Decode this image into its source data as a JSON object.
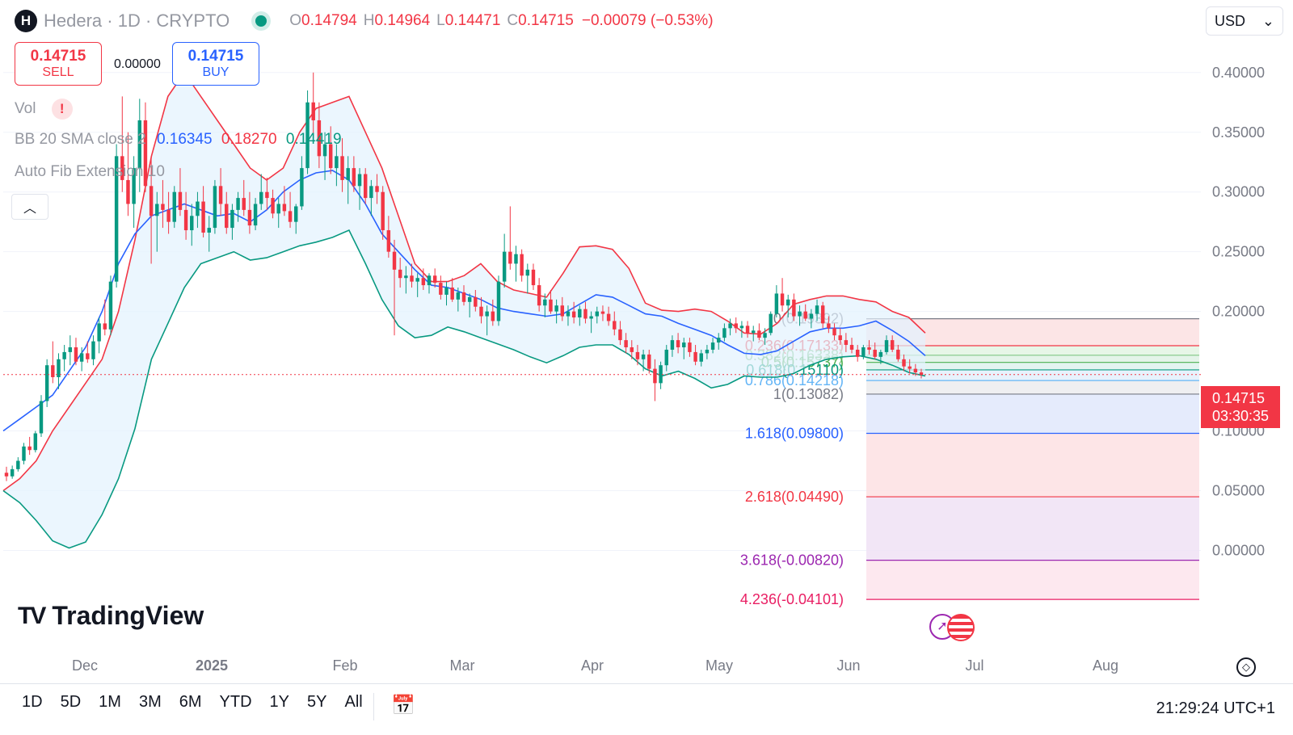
{
  "header": {
    "symbol": "Hedera · 1D · CRYPTO",
    "logo_letter": "H",
    "ohlc": {
      "o_label": "O",
      "o": "0.14794",
      "h_label": "H",
      "h": "0.14964",
      "l_label": "L",
      "l": "0.14471",
      "c_label": "C",
      "c": "0.14715",
      "change": "−0.00079 (−0.53%)"
    },
    "currency": "USD"
  },
  "trade": {
    "sell_price": "0.14715",
    "sell_label": "SELL",
    "buy_price": "0.14715",
    "buy_label": "BUY",
    "spread": "0.00000"
  },
  "indicators": {
    "vol_label": "Vol",
    "vol_warning": "!",
    "bb_label": "BB 20 SMA close 2",
    "bb_basis": "0.16345",
    "bb_upper": "0.18270",
    "bb_lower": "0.14419",
    "fib_label": "Auto Fib Extension 10"
  },
  "colors": {
    "up": "#089981",
    "down": "#f23645",
    "basis": "#2962ff",
    "upper": "#f23645",
    "lower": "#089981",
    "band_fill": "#e3f2fd"
  },
  "chart_data": {
    "type": "candlestick",
    "price_axis": {
      "min": -0.07,
      "max": 0.41,
      "ticks": [
        "0.40000",
        "0.35000",
        "0.30000",
        "0.25000",
        "0.20000",
        "0.10000",
        "0.05000",
        "0.00000"
      ]
    },
    "time_axis": [
      "Dec",
      "2025",
      "Feb",
      "Mar",
      "Apr",
      "May",
      "Jun",
      "Jul",
      "Aug"
    ],
    "last_price": "0.14715",
    "countdown": "03:30:35",
    "candles": [
      [
        0.065,
        0.07,
        0.058,
        0.062
      ],
      [
        0.062,
        0.071,
        0.06,
        0.068
      ],
      [
        0.068,
        0.078,
        0.066,
        0.075
      ],
      [
        0.075,
        0.09,
        0.072,
        0.087
      ],
      [
        0.087,
        0.095,
        0.08,
        0.084
      ],
      [
        0.084,
        0.1,
        0.082,
        0.098
      ],
      [
        0.098,
        0.13,
        0.095,
        0.125
      ],
      [
        0.125,
        0.16,
        0.12,
        0.155
      ],
      [
        0.155,
        0.175,
        0.14,
        0.145
      ],
      [
        0.145,
        0.165,
        0.135,
        0.16
      ],
      [
        0.16,
        0.172,
        0.15,
        0.166
      ],
      [
        0.166,
        0.18,
        0.155,
        0.17
      ],
      [
        0.17,
        0.178,
        0.155,
        0.158
      ],
      [
        0.158,
        0.17,
        0.15,
        0.165
      ],
      [
        0.165,
        0.175,
        0.157,
        0.16
      ],
      [
        0.16,
        0.18,
        0.155,
        0.175
      ],
      [
        0.175,
        0.195,
        0.165,
        0.19
      ],
      [
        0.19,
        0.21,
        0.18,
        0.185
      ],
      [
        0.185,
        0.23,
        0.18,
        0.225
      ],
      [
        0.225,
        0.34,
        0.22,
        0.33
      ],
      [
        0.33,
        0.38,
        0.3,
        0.31
      ],
      [
        0.31,
        0.35,
        0.28,
        0.29
      ],
      [
        0.29,
        0.33,
        0.27,
        0.32
      ],
      [
        0.32,
        0.378,
        0.3,
        0.36
      ],
      [
        0.36,
        0.375,
        0.3,
        0.305
      ],
      [
        0.305,
        0.33,
        0.24,
        0.28
      ],
      [
        0.28,
        0.3,
        0.25,
        0.29
      ],
      [
        0.29,
        0.31,
        0.27,
        0.285
      ],
      [
        0.285,
        0.3,
        0.265,
        0.275
      ],
      [
        0.275,
        0.305,
        0.27,
        0.3
      ],
      [
        0.3,
        0.32,
        0.28,
        0.285
      ],
      [
        0.285,
        0.3,
        0.26,
        0.268
      ],
      [
        0.268,
        0.29,
        0.255,
        0.28
      ],
      [
        0.28,
        0.3,
        0.27,
        0.292
      ],
      [
        0.292,
        0.305,
        0.262,
        0.266
      ],
      [
        0.266,
        0.28,
        0.25,
        0.27
      ],
      [
        0.27,
        0.31,
        0.265,
        0.305
      ],
      [
        0.305,
        0.32,
        0.28,
        0.29
      ],
      [
        0.29,
        0.3,
        0.265,
        0.27
      ],
      [
        0.27,
        0.29,
        0.26,
        0.285
      ],
      [
        0.285,
        0.3,
        0.275,
        0.295
      ],
      [
        0.295,
        0.31,
        0.28,
        0.285
      ],
      [
        0.285,
        0.3,
        0.265,
        0.272
      ],
      [
        0.272,
        0.295,
        0.268,
        0.29
      ],
      [
        0.29,
        0.315,
        0.285,
        0.3
      ],
      [
        0.3,
        0.312,
        0.285,
        0.295
      ],
      [
        0.295,
        0.302,
        0.278,
        0.282
      ],
      [
        0.282,
        0.295,
        0.27,
        0.29
      ],
      [
        0.29,
        0.305,
        0.28,
        0.284
      ],
      [
        0.284,
        0.3,
        0.27,
        0.275
      ],
      [
        0.275,
        0.29,
        0.265,
        0.288
      ],
      [
        0.288,
        0.33,
        0.285,
        0.32
      ],
      [
        0.32,
        0.385,
        0.315,
        0.375
      ],
      [
        0.375,
        0.4,
        0.345,
        0.36
      ],
      [
        0.36,
        0.375,
        0.32,
        0.33
      ],
      [
        0.33,
        0.35,
        0.31,
        0.34
      ],
      [
        0.34,
        0.355,
        0.315,
        0.32
      ],
      [
        0.32,
        0.34,
        0.305,
        0.33
      ],
      [
        0.33,
        0.345,
        0.3,
        0.31
      ],
      [
        0.31,
        0.33,
        0.29,
        0.32
      ],
      [
        0.32,
        0.33,
        0.3,
        0.305
      ],
      [
        0.305,
        0.32,
        0.285,
        0.315
      ],
      [
        0.315,
        0.32,
        0.29,
        0.295
      ],
      [
        0.295,
        0.31,
        0.28,
        0.305
      ],
      [
        0.305,
        0.315,
        0.29,
        0.3
      ],
      [
        0.3,
        0.305,
        0.26,
        0.268
      ],
      [
        0.268,
        0.28,
        0.245,
        0.25
      ],
      [
        0.25,
        0.26,
        0.18,
        0.235
      ],
      [
        0.235,
        0.245,
        0.22,
        0.228
      ],
      [
        0.228,
        0.238,
        0.215,
        0.23
      ],
      [
        0.23,
        0.24,
        0.22,
        0.225
      ],
      [
        0.225,
        0.232,
        0.212,
        0.228
      ],
      [
        0.228,
        0.236,
        0.218,
        0.222
      ],
      [
        0.222,
        0.232,
        0.215,
        0.23
      ],
      [
        0.23,
        0.236,
        0.22,
        0.224
      ],
      [
        0.224,
        0.23,
        0.21,
        0.214
      ],
      [
        0.214,
        0.225,
        0.205,
        0.22
      ],
      [
        0.22,
        0.228,
        0.208,
        0.21
      ],
      [
        0.21,
        0.22,
        0.2,
        0.216
      ],
      [
        0.216,
        0.222,
        0.205,
        0.208
      ],
      [
        0.208,
        0.215,
        0.195,
        0.212
      ],
      [
        0.212,
        0.218,
        0.2,
        0.204
      ],
      [
        0.204,
        0.212,
        0.19,
        0.196
      ],
      [
        0.196,
        0.205,
        0.18,
        0.2
      ],
      [
        0.2,
        0.21,
        0.188,
        0.192
      ],
      [
        0.192,
        0.23,
        0.188,
        0.225
      ],
      [
        0.225,
        0.265,
        0.22,
        0.25
      ],
      [
        0.25,
        0.288,
        0.235,
        0.24
      ],
      [
        0.24,
        0.255,
        0.225,
        0.248
      ],
      [
        0.248,
        0.252,
        0.225,
        0.23
      ],
      [
        0.23,
        0.24,
        0.215,
        0.235
      ],
      [
        0.235,
        0.24,
        0.218,
        0.222
      ],
      [
        0.222,
        0.228,
        0.2,
        0.205
      ],
      [
        0.205,
        0.215,
        0.195,
        0.21
      ],
      [
        0.21,
        0.218,
        0.198,
        0.2
      ],
      [
        0.2,
        0.21,
        0.19,
        0.205
      ],
      [
        0.205,
        0.212,
        0.192,
        0.196
      ],
      [
        0.196,
        0.205,
        0.188,
        0.2
      ],
      [
        0.2,
        0.208,
        0.19,
        0.195
      ],
      [
        0.195,
        0.205,
        0.188,
        0.202
      ],
      [
        0.202,
        0.208,
        0.19,
        0.194
      ],
      [
        0.194,
        0.2,
        0.182,
        0.196
      ],
      [
        0.196,
        0.204,
        0.19,
        0.2
      ],
      [
        0.2,
        0.205,
        0.192,
        0.198
      ],
      [
        0.198,
        0.204,
        0.188,
        0.192
      ],
      [
        0.192,
        0.2,
        0.18,
        0.185
      ],
      [
        0.185,
        0.192,
        0.172,
        0.176
      ],
      [
        0.176,
        0.182,
        0.165,
        0.17
      ],
      [
        0.17,
        0.176,
        0.16,
        0.166
      ],
      [
        0.166,
        0.172,
        0.155,
        0.16
      ],
      [
        0.16,
        0.168,
        0.15,
        0.164
      ],
      [
        0.164,
        0.168,
        0.148,
        0.152
      ],
      [
        0.152,
        0.16,
        0.125,
        0.14
      ],
      [
        0.14,
        0.158,
        0.135,
        0.155
      ],
      [
        0.155,
        0.172,
        0.15,
        0.168
      ],
      [
        0.168,
        0.18,
        0.162,
        0.176
      ],
      [
        0.176,
        0.182,
        0.165,
        0.17
      ],
      [
        0.17,
        0.178,
        0.16,
        0.174
      ],
      [
        0.174,
        0.178,
        0.162,
        0.166
      ],
      [
        0.166,
        0.172,
        0.155,
        0.158
      ],
      [
        0.158,
        0.168,
        0.154,
        0.165
      ],
      [
        0.165,
        0.172,
        0.16,
        0.168
      ],
      [
        0.168,
        0.178,
        0.165,
        0.174
      ],
      [
        0.174,
        0.182,
        0.168,
        0.178
      ],
      [
        0.178,
        0.19,
        0.175,
        0.186
      ],
      [
        0.186,
        0.194,
        0.18,
        0.19
      ],
      [
        0.19,
        0.195,
        0.182,
        0.186
      ],
      [
        0.186,
        0.192,
        0.178,
        0.188
      ],
      [
        0.188,
        0.192,
        0.178,
        0.182
      ],
      [
        0.182,
        0.188,
        0.175,
        0.184
      ],
      [
        0.184,
        0.19,
        0.176,
        0.178
      ],
      [
        0.178,
        0.186,
        0.172,
        0.182
      ],
      [
        0.182,
        0.2,
        0.18,
        0.198
      ],
      [
        0.198,
        0.222,
        0.195,
        0.215
      ],
      [
        0.215,
        0.228,
        0.2,
        0.205
      ],
      [
        0.205,
        0.214,
        0.195,
        0.21
      ],
      [
        0.21,
        0.215,
        0.192,
        0.196
      ],
      [
        0.196,
        0.205,
        0.188,
        0.2
      ],
      [
        0.2,
        0.206,
        0.192,
        0.194
      ],
      [
        0.194,
        0.202,
        0.186,
        0.198
      ],
      [
        0.198,
        0.21,
        0.192,
        0.205
      ],
      [
        0.205,
        0.208,
        0.186,
        0.19
      ],
      [
        0.19,
        0.196,
        0.182,
        0.186
      ],
      [
        0.186,
        0.19,
        0.176,
        0.18
      ],
      [
        0.18,
        0.186,
        0.172,
        0.176
      ],
      [
        0.176,
        0.182,
        0.166,
        0.172
      ],
      [
        0.172,
        0.178,
        0.165,
        0.168
      ],
      [
        0.168,
        0.172,
        0.158,
        0.162
      ],
      [
        0.162,
        0.172,
        0.16,
        0.17
      ],
      [
        0.17,
        0.176,
        0.164,
        0.168
      ],
      [
        0.168,
        0.174,
        0.16,
        0.162
      ],
      [
        0.162,
        0.168,
        0.156,
        0.166
      ],
      [
        0.166,
        0.18,
        0.164,
        0.176
      ],
      [
        0.176,
        0.18,
        0.166,
        0.168
      ],
      [
        0.168,
        0.172,
        0.158,
        0.16
      ],
      [
        0.16,
        0.164,
        0.15,
        0.154
      ],
      [
        0.154,
        0.16,
        0.148,
        0.152
      ],
      [
        0.152,
        0.156,
        0.146,
        0.149
      ],
      [
        0.149,
        0.152,
        0.144,
        0.147
      ]
    ],
    "bollinger": {
      "upper": [
        0.05,
        0.06,
        0.075,
        0.1,
        0.12,
        0.14,
        0.16,
        0.2,
        0.26,
        0.33,
        0.38,
        0.4,
        0.38,
        0.36,
        0.34,
        0.32,
        0.31,
        0.32,
        0.35,
        0.37,
        0.375,
        0.38,
        0.35,
        0.32,
        0.28,
        0.24,
        0.225,
        0.225,
        0.23,
        0.24,
        0.225,
        0.218,
        0.215,
        0.212,
        0.232,
        0.254,
        0.255,
        0.252,
        0.236,
        0.207,
        0.201,
        0.2,
        0.202,
        0.2,
        0.192,
        0.182,
        0.181,
        0.19,
        0.206,
        0.21,
        0.213,
        0.213,
        0.21,
        0.208,
        0.2,
        0.195,
        0.182
      ],
      "basis": [
        0.1,
        0.11,
        0.12,
        0.13,
        0.15,
        0.17,
        0.2,
        0.24,
        0.265,
        0.28,
        0.285,
        0.29,
        0.285,
        0.28,
        0.282,
        0.275,
        0.285,
        0.3,
        0.31,
        0.316,
        0.318,
        0.31,
        0.29,
        0.265,
        0.25,
        0.235,
        0.222,
        0.22,
        0.215,
        0.21,
        0.203,
        0.2,
        0.198,
        0.196,
        0.198,
        0.206,
        0.214,
        0.212,
        0.205,
        0.198,
        0.196,
        0.19,
        0.185,
        0.18,
        0.172,
        0.165,
        0.164,
        0.167,
        0.175,
        0.183,
        0.186,
        0.186,
        0.188,
        0.192,
        0.184,
        0.175,
        0.163
      ],
      "lower": [
        0.05,
        0.04,
        0.025,
        0.008,
        0.002,
        0.007,
        0.03,
        0.06,
        0.102,
        0.16,
        0.19,
        0.22,
        0.24,
        0.245,
        0.25,
        0.243,
        0.245,
        0.25,
        0.255,
        0.258,
        0.262,
        0.268,
        0.24,
        0.21,
        0.188,
        0.178,
        0.18,
        0.187,
        0.183,
        0.178,
        0.173,
        0.168,
        0.162,
        0.157,
        0.163,
        0.17,
        0.172,
        0.172,
        0.164,
        0.152,
        0.146,
        0.15,
        0.144,
        0.136,
        0.139,
        0.146,
        0.145,
        0.145,
        0.148,
        0.155,
        0.16,
        0.162,
        0.163,
        0.16,
        0.155,
        0.149,
        0.146
      ]
    },
    "fib_levels": [
      {
        "label": "0(0.19392)",
        "value": 0.19392,
        "color": "#787b86",
        "fill": "#f0f0f3"
      },
      {
        "label": "0.236(0.17133)",
        "value": 0.17133,
        "color": "#f23645",
        "fill": "#fbe0e2"
      },
      {
        "label": "0.382(0.16338)",
        "value": 0.16338,
        "color": "#81c784",
        "fill": "#e3f4e3"
      },
      {
        "label": "0.5(0.15737)",
        "value": 0.15737,
        "color": "#4caf50",
        "fill": "#dff2e5"
      },
      {
        "label": "0.618(0.15110)",
        "value": 0.1511,
        "color": "#089981",
        "fill": "#dff2ef"
      },
      {
        "label": "0.786(0.14218)",
        "value": 0.14218,
        "color": "#64b5f6",
        "fill": "#e3f0fb"
      },
      {
        "label": "1(0.13082)",
        "value": 0.13082,
        "color": "#787b86",
        "fill": "#ececef"
      },
      {
        "label": "1.618(0.09800)",
        "value": 0.098,
        "color": "#2962ff",
        "fill": "#e0e8fb"
      },
      {
        "label": "2.618(0.04490)",
        "value": 0.0449,
        "color": "#f23645",
        "fill": "#fde1e3"
      },
      {
        "label": "3.618(-0.00820)",
        "value": -0.0082,
        "color": "#9c27b0",
        "fill": "#f0e2f4"
      },
      {
        "label": "4.236(-0.04101)",
        "value": -0.04101,
        "color": "#e91e63",
        "fill": "#fde4ec"
      }
    ]
  },
  "branding": {
    "logo_text": "TradingView",
    "logo_mark": "TV"
  },
  "toolbar": {
    "ranges": [
      "1D",
      "5D",
      "1M",
      "3M",
      "6M",
      "YTD",
      "1Y",
      "5Y",
      "All"
    ],
    "clock": "21:29:24 UTC+1"
  }
}
